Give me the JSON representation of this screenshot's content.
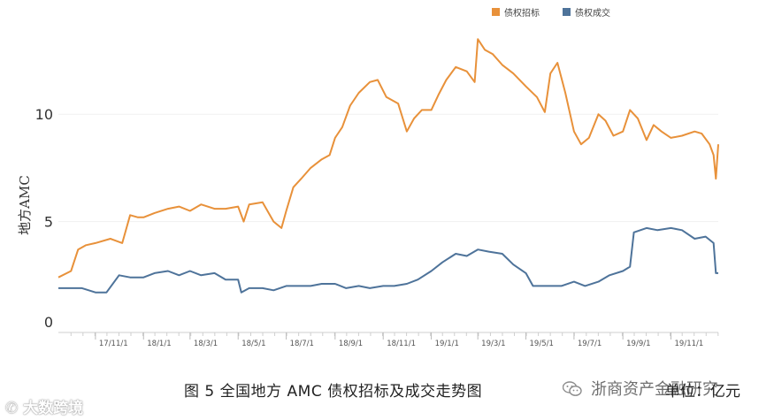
{
  "legend": [
    {
      "label": "债权招标",
      "color": "#e8913a"
    },
    {
      "label": "债权成交",
      "color": "#4e739a"
    }
  ],
  "caption": "图 5  全国地方 AMC 债权招标及成交走势图",
  "unit": "单位：亿元",
  "watermark": "浙商资产金融研究",
  "logo": "大数跨境",
  "chart_data": {
    "type": "line",
    "ylabel": "地方AMC",
    "ylim": [
      0,
      14.5
    ],
    "y_ticks": [
      0,
      5,
      10
    ],
    "grid": true,
    "legend_position": "top-right",
    "x_ticks": [
      "17/11/1",
      "18/1/1",
      "18/3/1",
      "18/5/1",
      "18/7/1",
      "18/9/1",
      "18/11/1",
      "19/1/1",
      "19/3/1",
      "19/5/1",
      "19/7/1",
      "19/9/1",
      "19/11/1"
    ],
    "series": [
      {
        "name": "债权招标",
        "color": "#e8913a",
        "x": [
          "2017-09-15",
          "2017-10-01",
          "2017-10-10",
          "2017-10-20",
          "2017-11-01",
          "2017-11-20",
          "2017-12-05",
          "2017-12-15",
          "2017-12-25",
          "2018-01-01",
          "2018-01-15",
          "2018-02-01",
          "2018-02-15",
          "2018-03-01",
          "2018-03-15",
          "2018-04-01",
          "2018-04-15",
          "2018-05-01",
          "2018-05-08",
          "2018-05-15",
          "2018-06-01",
          "2018-06-15",
          "2018-06-25",
          "2018-07-01",
          "2018-07-10",
          "2018-07-20",
          "2018-08-01",
          "2018-08-15",
          "2018-08-25",
          "2018-09-01",
          "2018-09-10",
          "2018-09-20",
          "2018-10-01",
          "2018-10-15",
          "2018-10-25",
          "2018-11-05",
          "2018-11-20",
          "2018-12-01",
          "2018-12-10",
          "2018-12-20",
          "2019-01-01",
          "2019-01-10",
          "2019-01-20",
          "2019-02-01",
          "2019-02-15",
          "2019-02-25",
          "2019-03-01",
          "2019-03-10",
          "2019-03-20",
          "2019-04-01",
          "2019-04-15",
          "2019-05-01",
          "2019-05-15",
          "2019-05-25",
          "2019-06-01",
          "2019-06-10",
          "2019-06-20",
          "2019-07-01",
          "2019-07-10",
          "2019-07-20",
          "2019-08-01",
          "2019-08-10",
          "2019-08-20",
          "2019-09-01",
          "2019-09-10",
          "2019-09-20",
          "2019-10-01",
          "2019-10-10",
          "2019-10-20",
          "2019-11-01",
          "2019-11-15",
          "2019-12-01",
          "2019-12-10",
          "2019-12-20",
          "2019-12-25",
          "2019-12-28",
          "2019-12-31"
        ],
        "values": [
          2.4,
          2.7,
          3.7,
          3.9,
          4.0,
          4.2,
          4.0,
          5.3,
          5.2,
          5.2,
          5.4,
          5.6,
          5.7,
          5.5,
          5.8,
          5.6,
          5.6,
          5.7,
          5.0,
          5.8,
          5.9,
          5.0,
          4.7,
          5.5,
          6.6,
          7.0,
          7.5,
          7.9,
          8.1,
          8.9,
          9.4,
          10.4,
          11.0,
          11.5,
          11.6,
          10.8,
          10.5,
          9.2,
          9.8,
          10.2,
          10.2,
          10.9,
          11.6,
          12.2,
          12.0,
          11.5,
          13.5,
          13.0,
          12.8,
          12.3,
          11.9,
          11.3,
          10.8,
          10.1,
          11.9,
          12.4,
          11.0,
          9.2,
          8.6,
          8.9,
          10.0,
          9.7,
          9.0,
          9.2,
          10.2,
          9.8,
          8.8,
          9.5,
          9.2,
          8.9,
          9.0,
          9.2,
          9.1,
          8.6,
          8.1,
          7.0,
          8.6
        ]
      },
      {
        "name": "债权成交",
        "color": "#4e739a",
        "x": [
          "2017-09-15",
          "2017-10-01",
          "2017-10-15",
          "2017-11-01",
          "2017-11-15",
          "2017-12-01",
          "2017-12-15",
          "2018-01-01",
          "2018-01-15",
          "2018-02-01",
          "2018-02-15",
          "2018-03-01",
          "2018-03-15",
          "2018-04-01",
          "2018-04-15",
          "2018-05-01",
          "2018-05-05",
          "2018-05-15",
          "2018-06-01",
          "2018-06-15",
          "2018-07-01",
          "2018-07-15",
          "2018-08-01",
          "2018-08-15",
          "2018-09-01",
          "2018-09-15",
          "2018-10-01",
          "2018-10-15",
          "2018-11-01",
          "2018-11-15",
          "2018-12-01",
          "2018-12-15",
          "2019-01-01",
          "2019-01-15",
          "2019-02-01",
          "2019-02-15",
          "2019-03-01",
          "2019-03-15",
          "2019-04-01",
          "2019-04-15",
          "2019-05-01",
          "2019-05-10",
          "2019-05-20",
          "2019-06-01",
          "2019-06-15",
          "2019-07-01",
          "2019-07-15",
          "2019-08-01",
          "2019-08-15",
          "2019-09-01",
          "2019-09-10",
          "2019-09-15",
          "2019-10-01",
          "2019-10-15",
          "2019-11-01",
          "2019-11-15",
          "2019-12-01",
          "2019-12-15",
          "2019-12-25",
          "2019-12-28",
          "2019-12-31"
        ],
        "values": [
          1.9,
          1.9,
          1.9,
          1.7,
          1.7,
          2.5,
          2.4,
          2.4,
          2.6,
          2.7,
          2.5,
          2.7,
          2.5,
          2.6,
          2.3,
          2.3,
          1.7,
          1.9,
          1.9,
          1.8,
          2.0,
          2.0,
          2.0,
          2.1,
          2.1,
          1.9,
          2.0,
          1.9,
          2.0,
          2.0,
          2.1,
          2.3,
          2.7,
          3.1,
          3.5,
          3.4,
          3.7,
          3.6,
          3.5,
          3.0,
          2.6,
          2.0,
          2.0,
          2.0,
          2.0,
          2.2,
          2.0,
          2.2,
          2.5,
          2.7,
          2.9,
          4.5,
          4.7,
          4.6,
          4.7,
          4.6,
          4.2,
          4.3,
          4.0,
          2.6,
          2.6
        ]
      }
    ]
  }
}
